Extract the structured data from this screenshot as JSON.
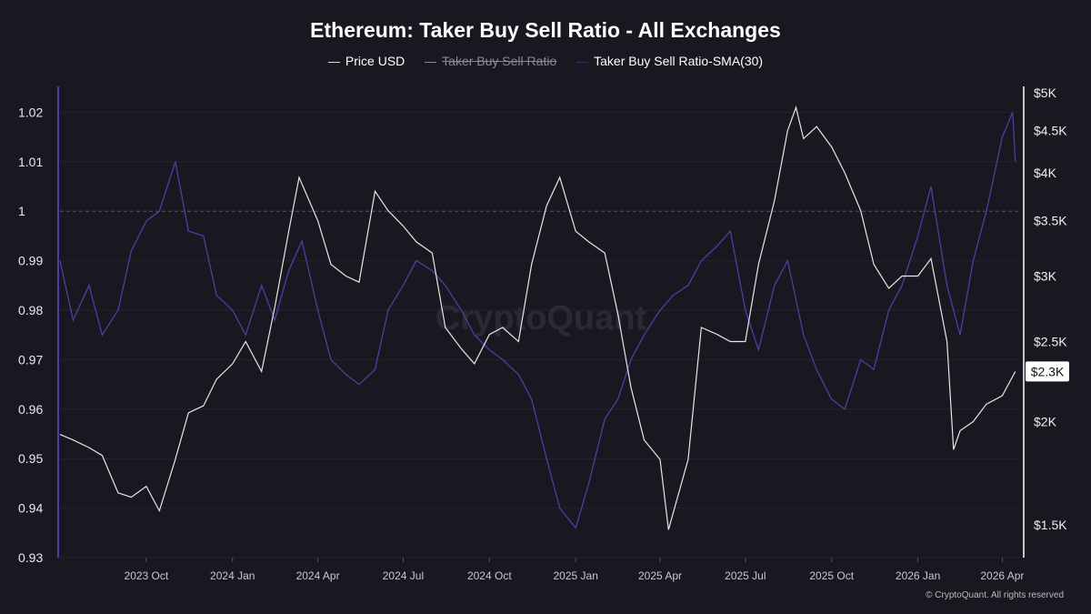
{
  "chart_data": {
    "type": "line",
    "title": "Ethereum: Taker Buy Sell Ratio - All Exchanges",
    "legend": [
      {
        "name": "Price USD",
        "color": "#dddddd",
        "hidden": false
      },
      {
        "name": "Taker Buy Sell Ratio",
        "color": "#8a8898",
        "hidden": true
      },
      {
        "name": "Taker Buy Sell Ratio-SMA(30)",
        "color": "#4b3fa0",
        "hidden": false
      }
    ],
    "legend_placement": "top-center",
    "x_ticks": [
      {
        "label": "2023 Oct",
        "date": "2023-10-01"
      },
      {
        "label": "2024 Jan",
        "date": "2024-01-01"
      },
      {
        "label": "2024 Apr",
        "date": "2024-04-01"
      },
      {
        "label": "2024 Jul",
        "date": "2024-07-01"
      },
      {
        "label": "2024 Oct",
        "date": "2024-10-01"
      },
      {
        "label": "2025 Jan",
        "date": "2025-01-01"
      },
      {
        "label": "2025 Apr",
        "date": "2025-04-01"
      },
      {
        "label": "2025 Jul",
        "date": "2025-07-01"
      },
      {
        "label": "2025 Oct",
        "date": "2025-10-01"
      },
      {
        "label": "2026 Jan",
        "date": "2026-01-01"
      },
      {
        "label": "2026 Apr",
        "date": "2026-04-01"
      }
    ],
    "xlim": [
      "2023-07-01",
      "2026-04-20"
    ],
    "left_axis": {
      "ticks": [
        0.93,
        0.94,
        0.95,
        0.96,
        0.97,
        0.98,
        0.99,
        1,
        1.01,
        1.02
      ],
      "labels": [
        "0.93",
        "0.94",
        "0.95",
        "0.96",
        "0.97",
        "0.98",
        "0.99",
        "1",
        "1.01",
        "1.02"
      ],
      "ylim": [
        0.93,
        1.025
      ],
      "reference_line": 1
    },
    "right_axis": {
      "scale": "log",
      "ticks": [
        1500,
        2000,
        2500,
        3000,
        3500,
        4000,
        4500,
        5000
      ],
      "labels": [
        "$1.5K",
        "$2K",
        "$2.5K",
        "$3K",
        "$3.5K",
        "$4K",
        "$4.5K",
        "$5K"
      ],
      "ylim": [
        1400,
        5000
      ],
      "current_value_label": "$2.3K",
      "current_value": 2300
    },
    "grid": true,
    "series": [
      {
        "name": "Price USD",
        "axis": "right",
        "points": [
          [
            "2023-07-01",
            1930
          ],
          [
            "2023-07-15",
            1900
          ],
          [
            "2023-08-01",
            1860
          ],
          [
            "2023-08-15",
            1820
          ],
          [
            "2023-09-01",
            1640
          ],
          [
            "2023-09-15",
            1620
          ],
          [
            "2023-10-01",
            1670
          ],
          [
            "2023-10-15",
            1560
          ],
          [
            "2023-11-01",
            1800
          ],
          [
            "2023-11-15",
            2050
          ],
          [
            "2023-12-01",
            2090
          ],
          [
            "2023-12-15",
            2250
          ],
          [
            "2024-01-01",
            2350
          ],
          [
            "2024-01-15",
            2500
          ],
          [
            "2024-02-01",
            2300
          ],
          [
            "2024-02-15",
            2750
          ],
          [
            "2024-03-01",
            3400
          ],
          [
            "2024-03-12",
            3950
          ],
          [
            "2024-04-01",
            3500
          ],
          [
            "2024-04-15",
            3100
          ],
          [
            "2024-05-01",
            3000
          ],
          [
            "2024-05-15",
            2950
          ],
          [
            "2024-06-01",
            3800
          ],
          [
            "2024-06-15",
            3600
          ],
          [
            "2024-07-01",
            3450
          ],
          [
            "2024-07-15",
            3300
          ],
          [
            "2024-08-01",
            3200
          ],
          [
            "2024-08-15",
            2600
          ],
          [
            "2024-09-01",
            2450
          ],
          [
            "2024-09-15",
            2350
          ],
          [
            "2024-10-01",
            2550
          ],
          [
            "2024-10-15",
            2600
          ],
          [
            "2024-11-01",
            2500
          ],
          [
            "2024-11-15",
            3100
          ],
          [
            "2024-12-01",
            3650
          ],
          [
            "2024-12-15",
            3950
          ],
          [
            "2025-01-01",
            3400
          ],
          [
            "2025-01-15",
            3300
          ],
          [
            "2025-02-01",
            3200
          ],
          [
            "2025-02-15",
            2700
          ],
          [
            "2025-03-01",
            2200
          ],
          [
            "2025-03-15",
            1900
          ],
          [
            "2025-04-01",
            1800
          ],
          [
            "2025-04-10",
            1480
          ],
          [
            "2025-05-01",
            1800
          ],
          [
            "2025-05-15",
            2600
          ],
          [
            "2025-06-01",
            2550
          ],
          [
            "2025-06-15",
            2500
          ],
          [
            "2025-07-01",
            2500
          ],
          [
            "2025-07-15",
            3100
          ],
          [
            "2025-08-01",
            3700
          ],
          [
            "2025-08-15",
            4500
          ],
          [
            "2025-08-24",
            4800
          ],
          [
            "2025-09-01",
            4400
          ],
          [
            "2025-09-15",
            4550
          ],
          [
            "2025-10-01",
            4300
          ],
          [
            "2025-10-15",
            4000
          ],
          [
            "2025-11-01",
            3600
          ],
          [
            "2025-11-15",
            3100
          ],
          [
            "2025-12-01",
            2900
          ],
          [
            "2025-12-15",
            3000
          ],
          [
            "2026-01-01",
            3000
          ],
          [
            "2026-01-15",
            3150
          ],
          [
            "2026-02-01",
            2500
          ],
          [
            "2026-02-08",
            1850
          ],
          [
            "2026-02-15",
            1950
          ],
          [
            "2026-03-01",
            2000
          ],
          [
            "2026-03-15",
            2100
          ],
          [
            "2026-04-01",
            2150
          ],
          [
            "2026-04-15",
            2300
          ]
        ]
      },
      {
        "name": "Taker Buy Sell Ratio-SMA(30)",
        "axis": "left",
        "points": [
          [
            "2023-07-01",
            0.99
          ],
          [
            "2023-07-15",
            0.978
          ],
          [
            "2023-08-01",
            0.985
          ],
          [
            "2023-08-15",
            0.975
          ],
          [
            "2023-09-01",
            0.98
          ],
          [
            "2023-09-15",
            0.992
          ],
          [
            "2023-10-01",
            0.998
          ],
          [
            "2023-10-15",
            1.0
          ],
          [
            "2023-11-01",
            1.01
          ],
          [
            "2023-11-15",
            0.996
          ],
          [
            "2023-12-01",
            0.995
          ],
          [
            "2023-12-15",
            0.983
          ],
          [
            "2024-01-01",
            0.98
          ],
          [
            "2024-01-15",
            0.975
          ],
          [
            "2024-02-01",
            0.985
          ],
          [
            "2024-02-15",
            0.978
          ],
          [
            "2024-03-01",
            0.988
          ],
          [
            "2024-03-15",
            0.994
          ],
          [
            "2024-04-01",
            0.98
          ],
          [
            "2024-04-15",
            0.97
          ],
          [
            "2024-05-01",
            0.967
          ],
          [
            "2024-05-15",
            0.965
          ],
          [
            "2024-06-01",
            0.968
          ],
          [
            "2024-06-15",
            0.98
          ],
          [
            "2024-07-01",
            0.985
          ],
          [
            "2024-07-15",
            0.99
          ],
          [
            "2024-08-01",
            0.988
          ],
          [
            "2024-08-15",
            0.985
          ],
          [
            "2024-09-01",
            0.98
          ],
          [
            "2024-09-15",
            0.975
          ],
          [
            "2024-10-01",
            0.972
          ],
          [
            "2024-10-15",
            0.97
          ],
          [
            "2024-11-01",
            0.967
          ],
          [
            "2024-11-15",
            0.962
          ],
          [
            "2024-12-01",
            0.95
          ],
          [
            "2024-12-15",
            0.94
          ],
          [
            "2025-01-01",
            0.936
          ],
          [
            "2025-01-15",
            0.945
          ],
          [
            "2025-02-01",
            0.958
          ],
          [
            "2025-02-15",
            0.962
          ],
          [
            "2025-03-01",
            0.97
          ],
          [
            "2025-03-15",
            0.975
          ],
          [
            "2025-04-01",
            0.98
          ],
          [
            "2025-04-15",
            0.983
          ],
          [
            "2025-05-01",
            0.985
          ],
          [
            "2025-05-15",
            0.99
          ],
          [
            "2025-06-01",
            0.993
          ],
          [
            "2025-06-15",
            0.996
          ],
          [
            "2025-07-01",
            0.98
          ],
          [
            "2025-07-15",
            0.972
          ],
          [
            "2025-08-01",
            0.985
          ],
          [
            "2025-08-15",
            0.99
          ],
          [
            "2025-09-01",
            0.975
          ],
          [
            "2025-09-15",
            0.968
          ],
          [
            "2025-10-01",
            0.962
          ],
          [
            "2025-10-15",
            0.96
          ],
          [
            "2025-11-01",
            0.97
          ],
          [
            "2025-11-15",
            0.968
          ],
          [
            "2025-12-01",
            0.98
          ],
          [
            "2025-12-15",
            0.985
          ],
          [
            "2026-01-01",
            0.995
          ],
          [
            "2026-01-15",
            1.005
          ],
          [
            "2026-02-01",
            0.985
          ],
          [
            "2026-02-15",
            0.975
          ],
          [
            "2026-03-01",
            0.99
          ],
          [
            "2026-03-15",
            1.0
          ],
          [
            "2026-04-01",
            1.015
          ],
          [
            "2026-04-12",
            1.02
          ],
          [
            "2026-04-15",
            1.01
          ]
        ]
      }
    ]
  },
  "watermark": "CryptoQuant",
  "copyright": "© CryptoQuant. All rights reserved"
}
